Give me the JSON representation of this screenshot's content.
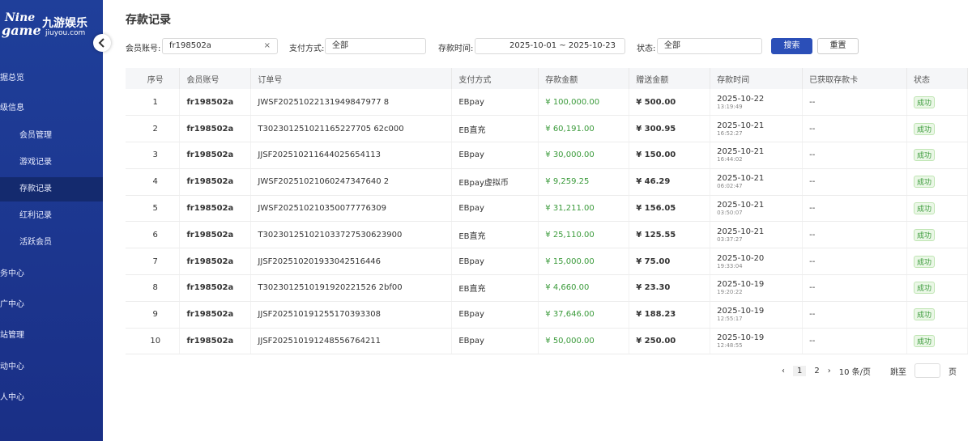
{
  "sidebar": {
    "logo_top": "Nine",
    "logo_cn": "九游娱乐",
    "logo_bottom": "game",
    "logo_domain": "jiuyou.com",
    "items": [
      {
        "label": "据总览"
      },
      {
        "label": "级信息",
        "sub": [
          {
            "label": "会员管理"
          },
          {
            "label": "游戏记录"
          },
          {
            "label": "存款记录"
          },
          {
            "label": "红利记录"
          },
          {
            "label": "活跃会员"
          }
        ]
      },
      {
        "label": "务中心"
      },
      {
        "label": "广中心"
      },
      {
        "label": "站管理"
      },
      {
        "label": "动中心"
      },
      {
        "label": "人中心"
      }
    ]
  },
  "page": {
    "title": "存款记录"
  },
  "filters": {
    "account_label": "会员账号:",
    "account_value": "fr198502a",
    "pay_label": "支付方式:",
    "pay_value": "全部",
    "time_label": "存款时间:",
    "date_from": "2025-10-01",
    "date_sep": "~",
    "date_to": "2025-10-23",
    "status_label": "状态:",
    "status_value": "全部",
    "search": "搜索",
    "reset": "重置"
  },
  "table": {
    "headers": [
      "序号",
      "会员账号",
      "订单号",
      "支付方式",
      "存款金额",
      "赠送金额",
      "存款时间",
      "已获取存款卡",
      "状态"
    ],
    "rows": [
      [
        "1",
        "fr198502a",
        "JWSF20251022131949847977 8",
        "EBpay",
        "¥ 100,000.00",
        "¥ 500.00",
        "2025-10-22",
        "13:19:49",
        "--",
        "成功"
      ],
      [
        "2",
        "fr198502a",
        "T302301251021165227705 62c000",
        "EB直充",
        "¥ 60,191.00",
        "¥ 300.95",
        "2025-10-21",
        "16:52:27",
        "--",
        "成功"
      ],
      [
        "3",
        "fr198502a",
        "JJSF202510211644025654113",
        "EBpay",
        "¥ 30,000.00",
        "¥ 150.00",
        "2025-10-21",
        "16:44:02",
        "--",
        "成功"
      ],
      [
        "4",
        "fr198502a",
        "JWSF20251021060247347640 2",
        "EBpay虚拟币",
        "¥ 9,259.25",
        "¥ 46.29",
        "2025-10-21",
        "06:02:47",
        "--",
        "成功"
      ],
      [
        "5",
        "fr198502a",
        "JWSF202510210350077776309",
        "EBpay",
        "¥ 31,211.00",
        "¥ 156.05",
        "2025-10-21",
        "03:50:07",
        "--",
        "成功"
      ],
      [
        "6",
        "fr198502a",
        "T302301251021033727530623900",
        "EB直充",
        "¥ 25,110.00",
        "¥ 125.55",
        "2025-10-21",
        "03:37:27",
        "--",
        "成功"
      ],
      [
        "7",
        "fr198502a",
        "JJSF202510201933042516446",
        "EBpay",
        "¥ 15,000.00",
        "¥ 75.00",
        "2025-10-20",
        "19:33:04",
        "--",
        "成功"
      ],
      [
        "8",
        "fr198502a",
        "T3023012510191920221526 2bf00",
        "EB直充",
        "¥ 4,660.00",
        "¥ 23.30",
        "2025-10-19",
        "19:20:22",
        "--",
        "成功"
      ],
      [
        "9",
        "fr198502a",
        "JJSF202510191255170393308",
        "EBpay",
        "¥ 37,646.00",
        "¥ 188.23",
        "2025-10-19",
        "12:55:17",
        "--",
        "成功"
      ],
      [
        "10",
        "fr198502a",
        "JJSF202510191248556764211",
        "EBpay",
        "¥ 50,000.00",
        "¥ 250.00",
        "2025-10-19",
        "12:48:55",
        "--",
        "成功"
      ]
    ]
  },
  "pagination": {
    "pages": [
      "1",
      "2"
    ],
    "size": "10 条/页",
    "jump": "跳至",
    "page_unit": "页"
  }
}
